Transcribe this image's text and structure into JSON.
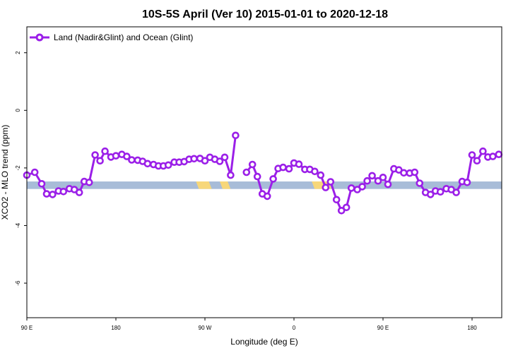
{
  "chart_data": {
    "type": "line",
    "title": "10S-5S April (Ver 10)   2015-01-01 to 2020-12-18",
    "xlabel": "Longitude (deg E)",
    "ylabel": "XCO2 - MLO trend (ppm)",
    "xlim": [
      90,
      450
    ],
    "ylim": [
      -7.2,
      2.9
    ],
    "x_ticks": [
      {
        "value": 90,
        "label": "90 E"
      },
      {
        "value": 180,
        "label": "180"
      },
      {
        "value": 270,
        "label": "90 W"
      },
      {
        "value": 360,
        "label": "0"
      },
      {
        "value": 450,
        "label": "90 E"
      },
      {
        "value": 540,
        "label": "180"
      }
    ],
    "y_ticks": [
      {
        "value": 2,
        "label": "2"
      },
      {
        "value": 0,
        "label": "0"
      },
      {
        "value": -2,
        "label": "-2"
      },
      {
        "value": -4,
        "label": "-4"
      },
      {
        "value": -6,
        "label": "-6"
      }
    ],
    "legend": {
      "position": "top-left",
      "entries": [
        "Land (Nadir&Glint) and Ocean (Glint)"
      ]
    },
    "grid": false,
    "colors": {
      "series": "#9b1fe8",
      "ocean_band": "#a8bcd8",
      "land_band": "#f7d77a"
    },
    "surface_band": {
      "y_range": [
        -2.73,
        -2.47
      ],
      "land_segments": [
        [
          261,
          274
        ],
        [
          285,
          293
        ],
        [
          378,
          395
        ]
      ]
    },
    "series": [
      {
        "name": "Land (Nadir&Glint) and Ocean (Glint)",
        "points": [
          [
            90,
            -2.25
          ],
          [
            98,
            -2.15
          ],
          [
            105,
            -2.55
          ],
          [
            110,
            -2.9
          ],
          [
            116,
            -2.92
          ],
          [
            122,
            -2.8
          ],
          [
            127,
            -2.82
          ],
          [
            133,
            -2.72
          ],
          [
            138,
            -2.75
          ],
          [
            143,
            -2.85
          ],
          [
            148,
            -2.47
          ],
          [
            153,
            -2.5
          ],
          [
            159,
            -1.55
          ],
          [
            164,
            -1.75
          ],
          [
            169,
            -1.42
          ],
          [
            175,
            -1.62
          ],
          [
            180,
            -1.58
          ],
          [
            186,
            -1.53
          ],
          [
            191,
            -1.6
          ],
          [
            196,
            -1.72
          ],
          [
            202,
            -1.73
          ],
          [
            207,
            -1.77
          ],
          [
            212,
            -1.85
          ],
          [
            218,
            -1.88
          ],
          [
            223,
            -1.93
          ],
          [
            228,
            -1.93
          ],
          [
            233,
            -1.9
          ],
          [
            239,
            -1.8
          ],
          [
            244,
            -1.8
          ],
          [
            249,
            -1.78
          ],
          [
            254,
            -1.7
          ],
          [
            259,
            -1.68
          ],
          [
            265,
            -1.67
          ],
          [
            270,
            -1.75
          ],
          [
            275,
            -1.63
          ],
          [
            280,
            -1.7
          ],
          [
            285,
            -1.77
          ],
          [
            290,
            -1.63
          ],
          [
            296,
            -2.25
          ],
          [
            301,
            -0.87
          ],
          null,
          [
            312,
            -2.15
          ],
          [
            318,
            -1.88
          ],
          [
            323,
            -2.3
          ],
          [
            328,
            -2.9
          ],
          [
            333,
            -2.98
          ],
          [
            339,
            -2.38
          ],
          [
            344,
            -2.02
          ],
          [
            349,
            -1.98
          ],
          [
            355,
            -2.03
          ],
          [
            360,
            -1.83
          ],
          [
            365,
            -1.87
          ],
          [
            371,
            -2.05
          ],
          [
            376,
            -2.05
          ],
          [
            381,
            -2.12
          ],
          [
            387,
            -2.25
          ],
          [
            392,
            -2.68
          ],
          [
            397,
            -2.48
          ],
          [
            403,
            -3.1
          ],
          [
            408,
            -3.48
          ],
          [
            413,
            -3.37
          ],
          [
            418,
            -2.7
          ],
          [
            424,
            -2.75
          ],
          [
            429,
            -2.65
          ],
          [
            434,
            -2.45
          ],
          [
            439,
            -2.27
          ],
          [
            445,
            -2.45
          ],
          [
            450,
            -2.33
          ],
          [
            455,
            -2.57
          ],
          [
            461,
            -2.03
          ],
          [
            466,
            -2.07
          ],
          [
            471,
            -2.17
          ],
          [
            477,
            -2.18
          ],
          [
            482,
            -2.15
          ],
          [
            487,
            -2.53
          ],
          [
            493,
            -2.85
          ],
          [
            498,
            -2.92
          ],
          [
            503,
            -2.8
          ],
          [
            508,
            -2.83
          ],
          [
            514,
            -2.72
          ],
          [
            519,
            -2.75
          ],
          [
            524,
            -2.85
          ],
          [
            530,
            -2.47
          ],
          [
            535,
            -2.5
          ],
          [
            540,
            -1.55
          ],
          [
            545,
            -1.75
          ],
          [
            551,
            -1.42
          ],
          [
            556,
            -1.62
          ],
          [
            561,
            -1.6
          ],
          [
            567,
            -1.53
          ]
        ]
      }
    ]
  }
}
